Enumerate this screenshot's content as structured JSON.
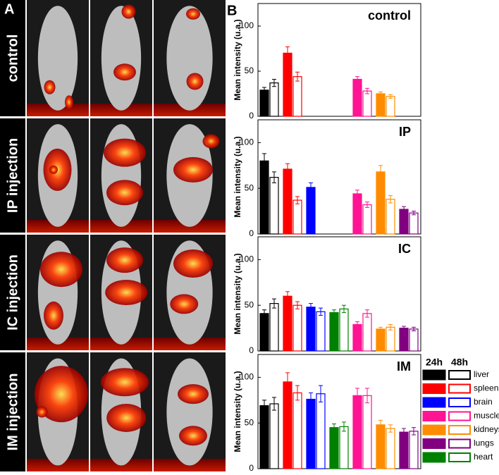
{
  "panel_a": {
    "label": "A",
    "rows": [
      "control",
      "IP injection",
      "IC injection",
      "IM injection"
    ]
  },
  "panel_b": {
    "label": "B",
    "legend": {
      "headers": [
        "24h",
        "48h"
      ],
      "items": [
        {
          "name": "liver",
          "color": "#000000"
        },
        {
          "name": "spleen",
          "color": "#ff0000"
        },
        {
          "name": "brain",
          "color": "#0000ff"
        },
        {
          "name": "muscle",
          "color": "#ff1493"
        },
        {
          "name": "kidneys",
          "color": "#ff8c00"
        },
        {
          "name": "lungs",
          "color": "#800080"
        },
        {
          "name": "heart",
          "color": "#008000"
        }
      ]
    },
    "ylabel": "Mean intensity (u.a.)",
    "charts": [
      {
        "title": "control",
        "ylim": [
          0,
          125
        ],
        "yticks": [
          0,
          50,
          100
        ],
        "values_24h": [
          29,
          70,
          null,
          41,
          25,
          null,
          null
        ],
        "errors_24h": [
          3,
          7,
          null,
          3,
          2,
          null,
          null
        ],
        "values_48h": [
          37,
          44,
          null,
          28,
          22,
          null,
          null
        ],
        "errors_48h": [
          4,
          5,
          null,
          3,
          2,
          null,
          null
        ]
      },
      {
        "title": "IP",
        "ylim": [
          0,
          125
        ],
        "yticks": [
          0,
          50,
          100
        ],
        "values_24h": [
          80,
          71,
          51,
          44,
          68,
          27,
          null
        ],
        "errors_24h": [
          8,
          6,
          5,
          4,
          7,
          3,
          null
        ],
        "values_48h": [
          62,
          37,
          null,
          32,
          38,
          23,
          null
        ],
        "errors_48h": [
          6,
          4,
          null,
          3,
          4,
          2,
          null
        ]
      },
      {
        "title": "IC",
        "ylim": [
          0,
          125
        ],
        "yticks": [
          0,
          50,
          100
        ],
        "values_24h": [
          41,
          60,
          48,
          29,
          24,
          25,
          42
        ],
        "errors_24h": [
          4,
          5,
          4,
          3,
          2,
          2,
          3
        ],
        "values_48h": [
          52,
          50,
          43,
          41,
          26,
          24,
          46
        ],
        "errors_48h": [
          5,
          4,
          4,
          4,
          3,
          2,
          4
        ]
      },
      {
        "title": "IM",
        "ylim": [
          0,
          125
        ],
        "yticks": [
          0,
          50,
          100
        ],
        "values_24h": [
          69,
          95,
          76,
          80,
          48,
          40,
          45
        ],
        "errors_24h": [
          6,
          10,
          7,
          8,
          5,
          4,
          4
        ],
        "values_48h": [
          71,
          83,
          82,
          80,
          44,
          41,
          46
        ],
        "errors_48h": [
          7,
          8,
          9,
          8,
          4,
          4,
          5
        ]
      }
    ]
  }
}
